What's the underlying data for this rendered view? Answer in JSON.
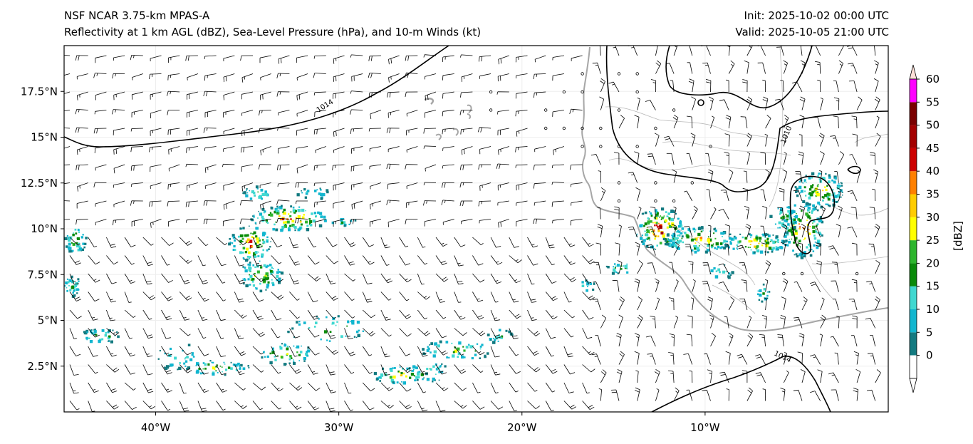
{
  "header": {
    "model": "NSF NCAR 3.75-km MPAS-A",
    "fields": "Reflectivity at 1 km AGL (dBZ), Sea-Level Pressure (hPa), and 10-m Winds (kt)",
    "init": "Init: 2025-10-02 00:00 UTC",
    "valid": "Valid: 2025-10-05 21:00 UTC"
  },
  "map": {
    "lon_range": [
      -45,
      0
    ],
    "lat_range": [
      0,
      20
    ],
    "lat_ticks": [
      {
        "value": 17.5,
        "label": "17.5°N"
      },
      {
        "value": 15,
        "label": "15°N"
      },
      {
        "value": 12.5,
        "label": "12.5°N"
      },
      {
        "value": 10,
        "label": "10°N"
      },
      {
        "value": 7.5,
        "label": "7.5°N"
      },
      {
        "value": 5,
        "label": "5°N"
      },
      {
        "value": 2.5,
        "label": "2.5°N"
      }
    ],
    "lon_ticks": [
      {
        "value": -40,
        "label": "40°W"
      },
      {
        "value": -30,
        "label": "30°W"
      },
      {
        "value": -20,
        "label": "20°W"
      },
      {
        "value": -10,
        "label": "10°W"
      }
    ],
    "isobars": [
      {
        "value": 1014,
        "label": "1014"
      },
      {
        "value": 1010,
        "label": "1010"
      },
      {
        "value": 1014,
        "label": "1014"
      }
    ]
  },
  "colorbar": {
    "unit": "[dBZ]",
    "ticks": [
      "0",
      "5",
      "10",
      "15",
      "20",
      "25",
      "30",
      "35",
      "40",
      "45",
      "50",
      "55",
      "60"
    ],
    "colors": [
      "#137a80",
      "#12b6cf",
      "#40d8d0",
      "#0a8a0a",
      "#2db52d",
      "#ffff00",
      "#ffcc00",
      "#ff8000",
      "#cc0000",
      "#a30000",
      "#7a0000",
      "#ff00ff",
      "#ffe0d8"
    ]
  }
}
